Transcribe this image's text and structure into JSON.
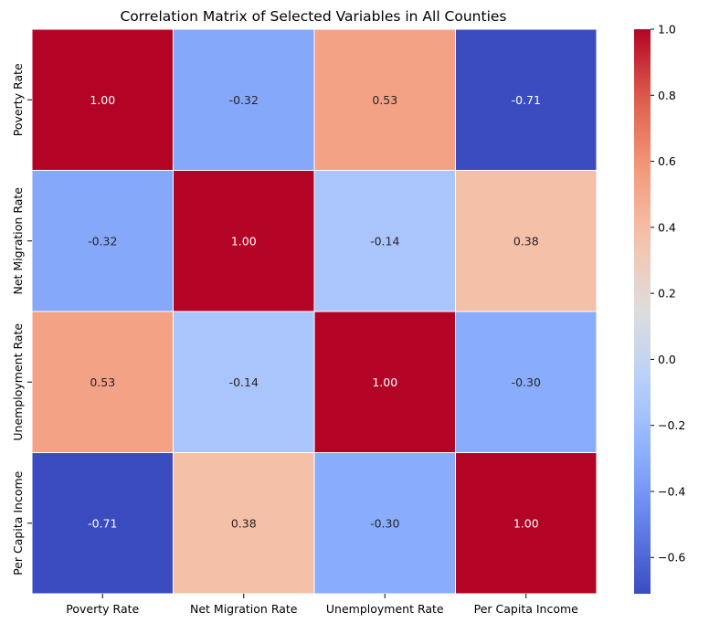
{
  "chart_data": {
    "type": "heatmap",
    "title": "Correlation Matrix of Selected Variables in All Counties",
    "xlabel": "",
    "ylabel": "",
    "x_categories": [
      "Poverty Rate",
      "Net Migration Rate",
      "Unemployment Rate",
      "Per Capita Income"
    ],
    "y_categories": [
      "Poverty Rate",
      "Net Migration Rate",
      "Unemployment Rate",
      "Per Capita Income"
    ],
    "values": [
      [
        1.0,
        -0.32,
        0.53,
        -0.71
      ],
      [
        -0.32,
        1.0,
        -0.14,
        0.38
      ],
      [
        0.53,
        -0.14,
        1.0,
        -0.3
      ],
      [
        -0.71,
        0.38,
        -0.3,
        1.0
      ]
    ],
    "annotations": [
      [
        "1.00",
        "-0.32",
        "0.53",
        "-0.71"
      ],
      [
        "-0.32",
        "1.00",
        "-0.14",
        "0.38"
      ],
      [
        "0.53",
        "-0.14",
        "1.00",
        "-0.30"
      ],
      [
        "-0.71",
        "0.38",
        "-0.30",
        "1.00"
      ]
    ],
    "colormap": "coolwarm",
    "color_range": [
      -0.71,
      1.0
    ],
    "colorbar_ticks": [
      "1.0",
      "0.8",
      "0.6",
      "0.4",
      "0.2",
      "0.0",
      "−0.2",
      "−0.4",
      "−0.6"
    ],
    "colorbar_tick_values": [
      1.0,
      0.8,
      0.6,
      0.4,
      0.2,
      0.0,
      -0.2,
      -0.4,
      -0.6
    ],
    "cell_border_color": "#ffffff",
    "legend_placement": "right"
  }
}
